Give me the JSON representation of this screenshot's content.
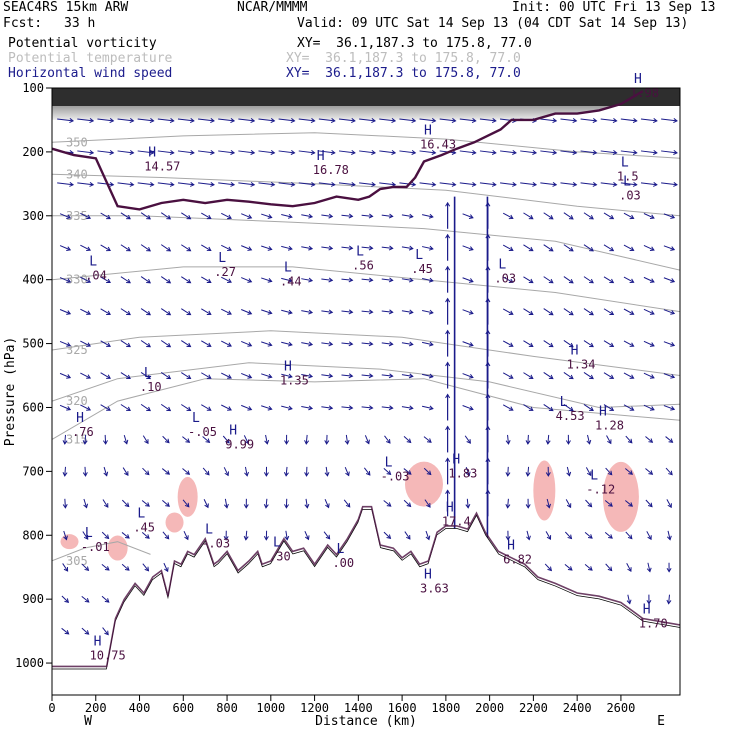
{
  "header": {
    "model": "SEAC4RS 15km ARW",
    "center": "NCAR/MMMM",
    "init": "Init: 00 UTC Fri 13 Sep 13",
    "fcst_label": "Fcst:",
    "fcst_value": "33 h",
    "valid": "Valid: 09 UTC Sat 14 Sep 13 (04 CDT Sat 14 Sep 13)"
  },
  "fields": [
    {
      "name": "Potential vorticity",
      "xy": "XY=  36.1,187.3 to 175.8, 77.0",
      "color": "#000000"
    },
    {
      "name": "Potential temperature",
      "xy": "XY=  36.1,187.3 to 175.8, 77.0",
      "color": "#bdbdbd"
    },
    {
      "name": "Horizontal wind speed",
      "xy": "XY=  36.1,187.3 to 175.8, 77.0",
      "color": "#1c1c8c"
    }
  ],
  "colors": {
    "theta": "#a8a8a8",
    "pv": "#4a1040",
    "wind": "#1a1a8a",
    "terrain": "#000000",
    "pink": "#f5b8b8"
  },
  "chart_data": {
    "type": "cross-section",
    "xlabel": "Distance (km)",
    "ylabel": "Pressure (hPa)",
    "xlim": [
      0,
      2870
    ],
    "ylim": [
      1050,
      100
    ],
    "x_ticks": [
      0,
      200,
      400,
      600,
      800,
      1000,
      1200,
      1400,
      1600,
      1800,
      2000,
      2200,
      2400,
      2600
    ],
    "y_ticks": [
      100,
      200,
      300,
      400,
      500,
      600,
      700,
      800,
      900,
      1000
    ],
    "x_end_labels": {
      "left": "W",
      "right": "E"
    },
    "terrain": [
      [
        0,
        1010
      ],
      [
        180,
        1010
      ],
      [
        250,
        1010
      ],
      [
        290,
        935
      ],
      [
        330,
        905
      ],
      [
        380,
        880
      ],
      [
        420,
        895
      ],
      [
        460,
        870
      ],
      [
        500,
        860
      ],
      [
        530,
        900
      ],
      [
        560,
        845
      ],
      [
        590,
        850
      ],
      [
        620,
        830
      ],
      [
        650,
        835
      ],
      [
        700,
        810
      ],
      [
        740,
        850
      ],
      [
        760,
        845
      ],
      [
        800,
        830
      ],
      [
        850,
        860
      ],
      [
        900,
        845
      ],
      [
        940,
        830
      ],
      [
        960,
        850
      ],
      [
        1000,
        845
      ],
      [
        1060,
        810
      ],
      [
        1100,
        830
      ],
      [
        1150,
        825
      ],
      [
        1200,
        850
      ],
      [
        1260,
        820
      ],
      [
        1300,
        835
      ],
      [
        1350,
        810
      ],
      [
        1400,
        780
      ],
      [
        1420,
        760
      ],
      [
        1460,
        760
      ],
      [
        1500,
        820
      ],
      [
        1560,
        825
      ],
      [
        1600,
        840
      ],
      [
        1640,
        830
      ],
      [
        1680,
        850
      ],
      [
        1720,
        845
      ],
      [
        1760,
        800
      ],
      [
        1800,
        790
      ],
      [
        1850,
        790
      ],
      [
        1900,
        795
      ],
      [
        1940,
        770
      ],
      [
        1980,
        800
      ],
      [
        2040,
        830
      ],
      [
        2100,
        840
      ],
      [
        2160,
        850
      ],
      [
        2220,
        870
      ],
      [
        2300,
        880
      ],
      [
        2400,
        895
      ],
      [
        2500,
        900
      ],
      [
        2600,
        910
      ],
      [
        2700,
        935
      ],
      [
        2870,
        945
      ]
    ],
    "pv_1_5_contour": [
      [
        0,
        195
      ],
      [
        100,
        205
      ],
      [
        200,
        210
      ],
      [
        300,
        285
      ],
      [
        400,
        290
      ],
      [
        500,
        280
      ],
      [
        600,
        275
      ],
      [
        700,
        280
      ],
      [
        800,
        275
      ],
      [
        900,
        278
      ],
      [
        1000,
        282
      ],
      [
        1100,
        285
      ],
      [
        1200,
        280
      ],
      [
        1300,
        270
      ],
      [
        1400,
        275
      ],
      [
        1450,
        270
      ],
      [
        1500,
        258
      ],
      [
        1560,
        255
      ],
      [
        1620,
        255
      ],
      [
        1660,
        240
      ],
      [
        1700,
        215
      ],
      [
        1780,
        205
      ],
      [
        1850,
        195
      ],
      [
        1930,
        185
      ],
      [
        2050,
        165
      ],
      [
        2100,
        150
      ],
      [
        2200,
        150
      ],
      [
        2300,
        140
      ],
      [
        2400,
        140
      ],
      [
        2500,
        135
      ],
      [
        2600,
        125
      ],
      [
        2700,
        105
      ]
    ],
    "theta_contours": [
      {
        "label": "315",
        "points": [
          [
            0,
            650
          ],
          [
            300,
            590
          ],
          [
            700,
            555
          ],
          [
            1200,
            560
          ],
          [
            1700,
            555
          ],
          [
            2200,
            600
          ],
          [
            2870,
            620
          ]
        ]
      },
      {
        "label": "320",
        "points": [
          [
            0,
            590
          ],
          [
            300,
            555
          ],
          [
            900,
            530
          ],
          [
            1500,
            540
          ],
          [
            2000,
            560
          ],
          [
            2500,
            600
          ],
          [
            2870,
            595
          ]
        ]
      },
      {
        "label": "325",
        "points": [
          [
            0,
            510
          ],
          [
            400,
            490
          ],
          [
            1000,
            480
          ],
          [
            1600,
            490
          ],
          [
            2200,
            520
          ],
          [
            2870,
            550
          ]
        ]
      },
      {
        "label": "330",
        "points": [
          [
            0,
            400
          ],
          [
            600,
            380
          ],
          [
            1100,
            380
          ],
          [
            1700,
            400
          ],
          [
            2300,
            420
          ],
          [
            2870,
            450
          ]
        ]
      },
      {
        "label": "335",
        "points": [
          [
            0,
            300
          ],
          [
            400,
            300
          ],
          [
            1100,
            310
          ],
          [
            1700,
            320
          ],
          [
            2300,
            340
          ],
          [
            2870,
            385
          ]
        ]
      },
      {
        "label": "340",
        "points": [
          [
            0,
            235
          ],
          [
            500,
            240
          ],
          [
            1200,
            250
          ],
          [
            1800,
            260
          ],
          [
            2400,
            285
          ],
          [
            2870,
            300
          ]
        ]
      },
      {
        "label": "350",
        "points": [
          [
            0,
            185
          ],
          [
            600,
            175
          ],
          [
            1200,
            170
          ],
          [
            1800,
            180
          ],
          [
            2400,
            200
          ],
          [
            2870,
            210
          ]
        ]
      },
      {
        "label": "305",
        "points": [
          [
            0,
            840
          ],
          [
            150,
            820
          ],
          [
            300,
            810
          ],
          [
            450,
            830
          ]
        ]
      }
    ],
    "annotations": [
      {
        "type": "H",
        "value": "14.57",
        "x": 440,
        "p": 220
      },
      {
        "type": "H",
        "value": "16.78",
        "x": 1210,
        "p": 225
      },
      {
        "type": "H",
        "value": "16.43",
        "x": 1700,
        "p": 185
      },
      {
        "type": "H",
        "value": "1.98",
        "x": 2660,
        "p": 105
      },
      {
        "type": "L",
        "value": "1.5",
        "x": 2600,
        "p": 235
      },
      {
        "type": "L",
        "value": ".03",
        "x": 2610,
        "p": 265
      },
      {
        "type": "L",
        "value": ".04",
        "x": 170,
        "p": 390
      },
      {
        "type": "L",
        "value": ".27",
        "x": 760,
        "p": 385
      },
      {
        "type": "L",
        "value": ".44",
        "x": 1060,
        "p": 400
      },
      {
        "type": "L",
        "value": ".56",
        "x": 1390,
        "p": 375
      },
      {
        "type": "L",
        "value": ".45",
        "x": 1660,
        "p": 380
      },
      {
        "type": "L",
        "value": ".03",
        "x": 2040,
        "p": 395
      },
      {
        "type": "H",
        "value": "1.34",
        "x": 2370,
        "p": 530
      },
      {
        "type": "L",
        "value": ".10",
        "x": 420,
        "p": 565
      },
      {
        "type": "H",
        "value": "1.35",
        "x": 1060,
        "p": 555
      },
      {
        "type": "L",
        "value": "4.53",
        "x": 2320,
        "p": 610
      },
      {
        "type": "H",
        "value": "1.28",
        "x": 2500,
        "p": 625
      },
      {
        "type": "H",
        "value": ".76",
        "x": 110,
        "p": 635
      },
      {
        "type": "L",
        "value": "-.05",
        "x": 640,
        "p": 635
      },
      {
        "type": "H",
        "value": "9.99",
        "x": 810,
        "p": 655
      },
      {
        "type": "H",
        "value": "1.83",
        "x": 1830,
        "p": 700
      },
      {
        "type": "L",
        "value": "-.03",
        "x": 1520,
        "p": 705
      },
      {
        "type": "L",
        "value": "-.12",
        "x": 2460,
        "p": 725
      },
      {
        "type": "L",
        "value": ".45",
        "x": 390,
        "p": 785
      },
      {
        "type": "H",
        "value": "17.4",
        "x": 1800,
        "p": 775
      },
      {
        "type": "L",
        "value": "-.03",
        "x": 700,
        "p": 810
      },
      {
        "type": "L",
        "value": "-.01",
        "x": 150,
        "p": 815
      },
      {
        "type": "H",
        "value": "6.82",
        "x": 2080,
        "p": 835
      },
      {
        "type": "L",
        "value": ".30",
        "x": 1010,
        "p": 830
      },
      {
        "type": "L",
        "value": ".00",
        "x": 1300,
        "p": 840
      },
      {
        "type": "H",
        "value": "3.63",
        "x": 1700,
        "p": 880
      },
      {
        "type": "H",
        "value": "10.75",
        "x": 190,
        "p": 985
      },
      {
        "type": "H",
        "value": "1.70",
        "x": 2700,
        "p": 935
      }
    ],
    "jet_columns_km": [
      1840,
      1990
    ]
  }
}
